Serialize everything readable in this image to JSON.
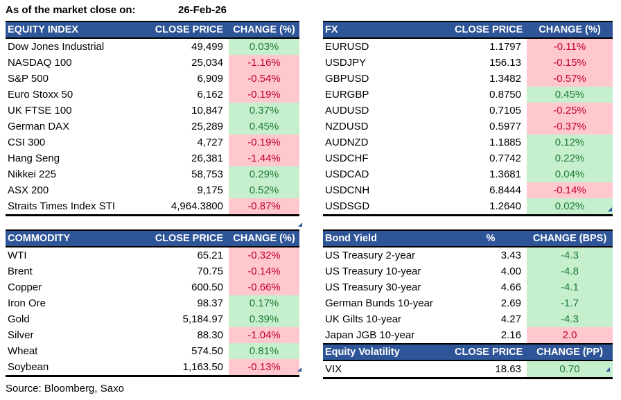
{
  "meta": {
    "as_of_label": "As of the market close on:",
    "as_of_date": "26-Feb-26",
    "source": "Source: Bloomberg, Saxo"
  },
  "colors": {
    "header_bg": "#2E5597",
    "good_bg": "#C6EFCE",
    "good_text": "#1E7B34",
    "bad_bg": "#FFC7CE",
    "bad_text": "#C00030"
  },
  "tables": [
    {
      "id": "equity-index",
      "columns": [
        "EQUITY INDEX",
        "CLOSE PRICE",
        "CHANGE (%)"
      ],
      "rows": [
        {
          "label": "Dow Jones Industrial",
          "close": "49,499",
          "change": "0.03%",
          "tone": "good"
        },
        {
          "label": "NASDAQ 100",
          "close": "25,034",
          "change": "-1.16%",
          "tone": "bad"
        },
        {
          "label": "S&P 500",
          "close": "6,909",
          "change": "-0.54%",
          "tone": "bad"
        },
        {
          "label": "Euro Stoxx 50",
          "close": "6,162",
          "change": "-0.19%",
          "tone": "bad"
        },
        {
          "label": "UK FTSE 100",
          "close": "10,847",
          "change": "0.37%",
          "tone": "good"
        },
        {
          "label": "German DAX",
          "close": "25,289",
          "change": "0.45%",
          "tone": "good"
        },
        {
          "label": "CSI 300",
          "close": "4,727",
          "change": "-0.19%",
          "tone": "bad"
        },
        {
          "label": "Hang Seng",
          "close": "26,381",
          "change": "-1.44%",
          "tone": "bad"
        },
        {
          "label": "Nikkei 225",
          "close": "58,753",
          "change": "0.29%",
          "tone": "good"
        },
        {
          "label": "ASX 200",
          "close": "9,175",
          "change": "0.52%",
          "tone": "good"
        },
        {
          "label": "Straits Times Index STI",
          "close": "4,964.3800",
          "change": "-0.87%",
          "tone": "bad"
        }
      ]
    },
    {
      "id": "fx",
      "columns": [
        "FX",
        "CLOSE PRICE",
        "CHANGE (%)"
      ],
      "rows": [
        {
          "label": "EURUSD",
          "close": "1.1797",
          "change": "-0.11%",
          "tone": "bad"
        },
        {
          "label": "USDJPY",
          "close": "156.13",
          "change": "-0.15%",
          "tone": "bad"
        },
        {
          "label": "GBPUSD",
          "close": "1.3482",
          "change": "-0.57%",
          "tone": "bad"
        },
        {
          "label": "EURGBP",
          "close": "0.8750",
          "change": "0.45%",
          "tone": "good"
        },
        {
          "label": "AUDUSD",
          "close": "0.7105",
          "change": "-0.25%",
          "tone": "bad"
        },
        {
          "label": "NZDUSD",
          "close": "0.5977",
          "change": "-0.37%",
          "tone": "bad"
        },
        {
          "label": "AUDNZD",
          "close": "1.1885",
          "change": "0.12%",
          "tone": "good"
        },
        {
          "label": "USDCHF",
          "close": "0.7742",
          "change": "0.22%",
          "tone": "good"
        },
        {
          "label": "USDCAD",
          "close": "1.3681",
          "change": "0.04%",
          "tone": "good"
        },
        {
          "label": "USDCNH",
          "close": "6.8444",
          "change": "-0.14%",
          "tone": "bad"
        },
        {
          "label": "USDSGD",
          "close": "1.2640",
          "change": "0.02%",
          "tone": "good"
        }
      ]
    },
    {
      "id": "commodity",
      "columns": [
        "COMMODITY",
        "CLOSE PRICE",
        "CHANGE (%)"
      ],
      "rows": [
        {
          "label": "WTI",
          "close": "65.21",
          "change": "-0.32%",
          "tone": "bad"
        },
        {
          "label": "Brent",
          "close": "70.75",
          "change": "-0.14%",
          "tone": "bad"
        },
        {
          "label": "Copper",
          "close": "600.50",
          "change": "-0.66%",
          "tone": "bad"
        },
        {
          "label": "Iron Ore",
          "close": "98.37",
          "change": "0.17%",
          "tone": "good"
        },
        {
          "label": "Gold",
          "close": "5,184.97",
          "change": "0.39%",
          "tone": "good"
        },
        {
          "label": "Silver",
          "close": "88.30",
          "change": "-1.04%",
          "tone": "bad"
        },
        {
          "label": "Wheat",
          "close": "574.50",
          "change": "0.81%",
          "tone": "good"
        },
        {
          "label": "Soybean",
          "close": "1,163.50",
          "change": "-0.13%",
          "tone": "bad"
        }
      ]
    },
    {
      "id": "bond-yield",
      "columns": [
        "Bond Yield",
        "%",
        "CHANGE (BPS)"
      ],
      "rows": [
        {
          "label": "US Treasury 2-year",
          "close": "3.43",
          "change": "-4.3",
          "tone": "good"
        },
        {
          "label": "US Treasury 10-year",
          "close": "4.00",
          "change": "-4.8",
          "tone": "good"
        },
        {
          "label": "US Treasury 30-year",
          "close": "4.66",
          "change": "-4.1",
          "tone": "good"
        },
        {
          "label": "German Bunds 10-year",
          "close": "2.69",
          "change": "-1.7",
          "tone": "good"
        },
        {
          "label": "UK Gilts 10-year",
          "close": "4.27",
          "change": "-4.3",
          "tone": "good"
        },
        {
          "label": "Japan JGB 10-year",
          "close": "2.16",
          "change": "2.0",
          "tone": "bad"
        }
      ]
    },
    {
      "id": "equity-volatility",
      "columns": [
        "Equity Volatility",
        "CLOSE PRICE",
        "CHANGE (PP)"
      ],
      "rows": [
        {
          "label": "VIX",
          "close": "18.63",
          "change": "0.70",
          "tone": "good"
        }
      ]
    }
  ]
}
